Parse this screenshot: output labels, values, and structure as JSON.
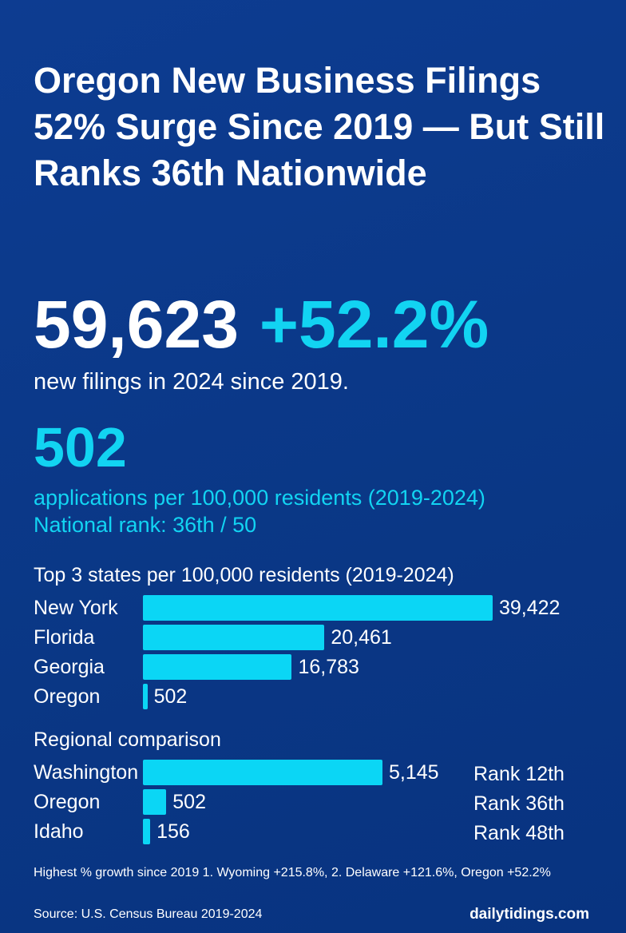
{
  "title": "Oregon New Business Filings 52% Surge Since 2019 — But Still Ranks 36th Nationwide",
  "headline": {
    "value": "59,623",
    "change": "+52.2%",
    "caption": "new filings in 2024 since 2019."
  },
  "per_capita": {
    "value": "502",
    "caption": "applications per 100,000 residents (2019-2024)",
    "rank": "National rank: 36th / 50"
  },
  "chart_data": [
    {
      "type": "bar",
      "title": "Top 3 states per 100,000 residents (2019-2024)",
      "categories": [
        "New York",
        "Florida",
        "Georgia",
        "Oregon"
      ],
      "values": [
        39422,
        20461,
        16783,
        502
      ],
      "labels": [
        "39,422",
        "20,461",
        "16,783",
        "502"
      ],
      "orientation": "horizontal",
      "color": "#0bd6f5"
    },
    {
      "type": "bar",
      "title": "Regional comparison",
      "categories": [
        "Washington",
        "Oregon",
        "Idaho"
      ],
      "values": [
        5145,
        502,
        156
      ],
      "labels": [
        "5,145",
        "502",
        "156"
      ],
      "ranks": [
        "Rank 12th",
        "Rank 36th",
        "Rank 48th"
      ],
      "orientation": "horizontal",
      "color": "#0bd6f5"
    }
  ],
  "note": "Highest % growth since 2019 1. Wyoming +215.8%, 2. Delaware +121.6%, Oregon +52.2%",
  "source": "Source: U.S. Census Bureau 2019-2024",
  "brand": "dailytidings.com"
}
